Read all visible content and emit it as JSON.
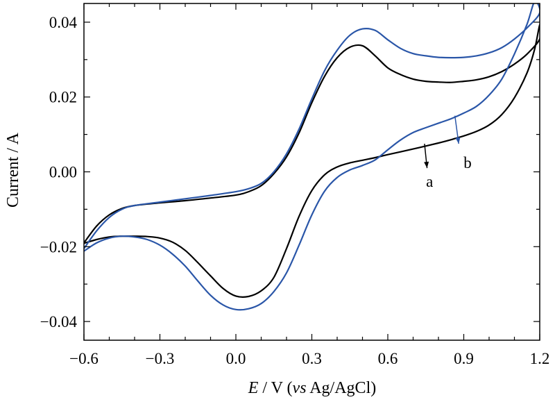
{
  "chart_data": {
    "type": "line",
    "xlabel_parts": {
      "var": "E",
      "unit": " / V (",
      "ref_italic": "vs",
      "ref": " Ag/AgCl)"
    },
    "ylabel": "Current / A",
    "xlim": [
      -0.6,
      1.2
    ],
    "ylim": [
      -0.045,
      0.045
    ],
    "x_ticks": [
      -0.6,
      -0.3,
      0.0,
      0.3,
      0.6,
      0.9,
      1.2
    ],
    "x_tick_labels": [
      "−0.6",
      "−0.3",
      "0.0",
      "0.3",
      "0.6",
      "0.9",
      "1.2"
    ],
    "y_ticks": [
      -0.04,
      -0.02,
      0.0,
      0.02,
      0.04
    ],
    "y_tick_labels": [
      "−0.04",
      "−0.02",
      "0.00",
      "0.02",
      "0.04"
    ],
    "grid": false,
    "series": [
      {
        "name": "a",
        "color": "#000000",
        "points": [
          [
            -0.6,
            -0.019
          ],
          [
            -0.55,
            -0.0145
          ],
          [
            -0.5,
            -0.0115
          ],
          [
            -0.45,
            -0.0098
          ],
          [
            -0.4,
            -0.009
          ],
          [
            -0.3,
            -0.0083
          ],
          [
            -0.2,
            -0.0077
          ],
          [
            -0.1,
            -0.007
          ],
          [
            0.0,
            -0.0062
          ],
          [
            0.05,
            -0.0053
          ],
          [
            0.1,
            -0.0037
          ],
          [
            0.15,
            -0.0005
          ],
          [
            0.2,
            0.004
          ],
          [
            0.25,
            0.0105
          ],
          [
            0.3,
            0.0185
          ],
          [
            0.35,
            0.0255
          ],
          [
            0.4,
            0.0305
          ],
          [
            0.45,
            0.0333
          ],
          [
            0.5,
            0.0337
          ],
          [
            0.55,
            0.031
          ],
          [
            0.6,
            0.0278
          ],
          [
            0.65,
            0.026
          ],
          [
            0.7,
            0.0248
          ],
          [
            0.75,
            0.0242
          ],
          [
            0.8,
            0.024
          ],
          [
            0.85,
            0.0239
          ],
          [
            0.9,
            0.0242
          ],
          [
            0.95,
            0.0246
          ],
          [
            1.0,
            0.0254
          ],
          [
            1.05,
            0.0268
          ],
          [
            1.1,
            0.0288
          ],
          [
            1.15,
            0.0315
          ],
          [
            1.2,
            0.0355
          ],
          [
            1.2,
            0.0393
          ],
          [
            1.18,
            0.0328
          ],
          [
            1.15,
            0.0265
          ],
          [
            1.1,
            0.0198
          ],
          [
            1.05,
            0.0153
          ],
          [
            1.0,
            0.0125
          ],
          [
            0.95,
            0.0108
          ],
          [
            0.9,
            0.0096
          ],
          [
            0.85,
            0.0086
          ],
          [
            0.8,
            0.0077
          ],
          [
            0.75,
            0.0069
          ],
          [
            0.7,
            0.0061
          ],
          [
            0.6,
            0.0046
          ],
          [
            0.55,
            0.0038
          ],
          [
            0.5,
            0.0031
          ],
          [
            0.45,
            0.0024
          ],
          [
            0.4,
            0.0013
          ],
          [
            0.35,
            -0.0008
          ],
          [
            0.3,
            -0.005
          ],
          [
            0.25,
            -0.0118
          ],
          [
            0.2,
            -0.0205
          ],
          [
            0.15,
            -0.0282
          ],
          [
            0.1,
            -0.0318
          ],
          [
            0.05,
            -0.0333
          ],
          [
            0.0,
            -0.0332
          ],
          [
            -0.05,
            -0.0312
          ],
          [
            -0.1,
            -0.0278
          ],
          [
            -0.15,
            -0.0243
          ],
          [
            -0.2,
            -0.021
          ],
          [
            -0.25,
            -0.0188
          ],
          [
            -0.3,
            -0.0177
          ],
          [
            -0.35,
            -0.0173
          ],
          [
            -0.4,
            -0.0172
          ],
          [
            -0.45,
            -0.0172
          ],
          [
            -0.5,
            -0.0174
          ],
          [
            -0.55,
            -0.0181
          ],
          [
            -0.6,
            -0.0191
          ]
        ]
      },
      {
        "name": "b",
        "color": "#2a56a8",
        "points": [
          [
            -0.6,
            -0.0205
          ],
          [
            -0.55,
            -0.0158
          ],
          [
            -0.5,
            -0.0122
          ],
          [
            -0.45,
            -0.01
          ],
          [
            -0.4,
            -0.009
          ],
          [
            -0.3,
            -0.0081
          ],
          [
            -0.2,
            -0.0072
          ],
          [
            -0.1,
            -0.0063
          ],
          [
            0.0,
            -0.0053
          ],
          [
            0.05,
            -0.0045
          ],
          [
            0.1,
            -0.0031
          ],
          [
            0.15,
            0.0
          ],
          [
            0.2,
            0.0048
          ],
          [
            0.25,
            0.0115
          ],
          [
            0.3,
            0.0195
          ],
          [
            0.35,
            0.027
          ],
          [
            0.4,
            0.0325
          ],
          [
            0.45,
            0.0365
          ],
          [
            0.5,
            0.0382
          ],
          [
            0.55,
            0.0378
          ],
          [
            0.6,
            0.0353
          ],
          [
            0.65,
            0.033
          ],
          [
            0.7,
            0.0316
          ],
          [
            0.75,
            0.031
          ],
          [
            0.8,
            0.0306
          ],
          [
            0.85,
            0.0305
          ],
          [
            0.9,
            0.0306
          ],
          [
            0.95,
            0.031
          ],
          [
            1.0,
            0.0318
          ],
          [
            1.05,
            0.0332
          ],
          [
            1.1,
            0.0355
          ],
          [
            1.15,
            0.0385
          ],
          [
            1.2,
            0.0425
          ],
          [
            1.18,
            0.0455
          ],
          [
            1.15,
            0.0395
          ],
          [
            1.1,
            0.0315
          ],
          [
            1.05,
            0.0248
          ],
          [
            1.0,
            0.0205
          ],
          [
            0.95,
            0.0175
          ],
          [
            0.9,
            0.0157
          ],
          [
            0.85,
            0.0142
          ],
          [
            0.8,
            0.013
          ],
          [
            0.75,
            0.0118
          ],
          [
            0.7,
            0.0105
          ],
          [
            0.65,
            0.0085
          ],
          [
            0.6,
            0.0059
          ],
          [
            0.55,
            0.0032
          ],
          [
            0.5,
            0.0017
          ],
          [
            0.45,
            0.0005
          ],
          [
            0.4,
            -0.0015
          ],
          [
            0.35,
            -0.0052
          ],
          [
            0.3,
            -0.0115
          ],
          [
            0.25,
            -0.0195
          ],
          [
            0.2,
            -0.027
          ],
          [
            0.15,
            -0.032
          ],
          [
            0.1,
            -0.0352
          ],
          [
            0.05,
            -0.0366
          ],
          [
            0.0,
            -0.0368
          ],
          [
            -0.05,
            -0.0356
          ],
          [
            -0.1,
            -0.033
          ],
          [
            -0.15,
            -0.0292
          ],
          [
            -0.2,
            -0.0252
          ],
          [
            -0.25,
            -0.022
          ],
          [
            -0.3,
            -0.0196
          ],
          [
            -0.35,
            -0.0181
          ],
          [
            -0.4,
            -0.0174
          ],
          [
            -0.45,
            -0.0172
          ],
          [
            -0.5,
            -0.0177
          ],
          [
            -0.55,
            -0.019
          ],
          [
            -0.6,
            -0.0212
          ]
        ]
      }
    ],
    "annotations": [
      {
        "text": "a",
        "arrow_from": [
          0.745,
          0.0075
        ],
        "arrow_to": [
          0.755,
          0.001
        ],
        "label_at": [
          0.765,
          -0.0025
        ],
        "color": "#000000"
      },
      {
        "text": "b",
        "arrow_from": [
          0.865,
          0.015
        ],
        "arrow_to": [
          0.88,
          0.0075
        ],
        "label_at": [
          0.915,
          0.0025
        ],
        "color": "#2a56a8"
      }
    ]
  }
}
